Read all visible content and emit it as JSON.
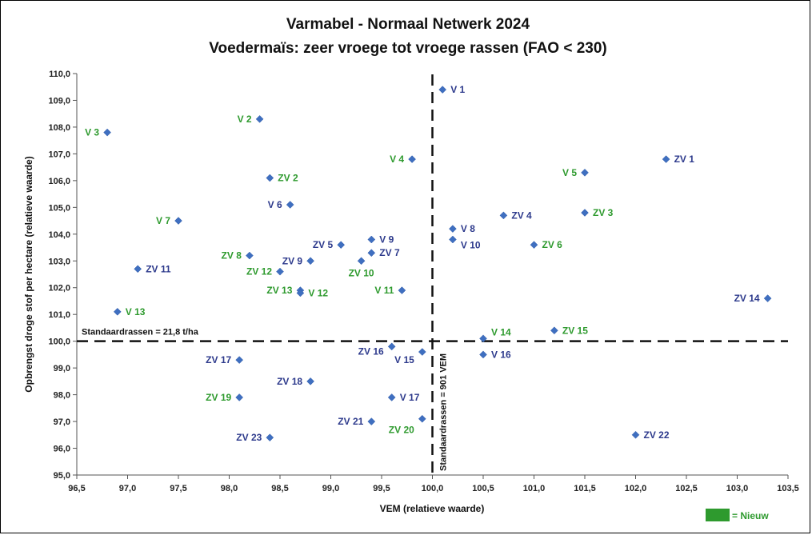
{
  "chart_data": {
    "type": "scatter",
    "title": "Varmabel - Normaal Netwerk 2024",
    "subtitle": "Voedermaïs: zeer vroege tot vroege rassen (FAO < 230)",
    "xlabel": "VEM (relatieve waarde)",
    "ylabel": "Opbrengst droge stof per hectare (relatieve waarde)",
    "xlim": [
      96.5,
      103.5
    ],
    "ylim": [
      95.0,
      110.0
    ],
    "x_ticks": [
      "96,5",
      "97,0",
      "97,5",
      "98,0",
      "98,5",
      "99,0",
      "99,5",
      "100,0",
      "100,5",
      "101,0",
      "101,5",
      "102,0",
      "102,5",
      "103,0",
      "103,5"
    ],
    "y_ticks": [
      "95,0",
      "96,0",
      "97,0",
      "98,0",
      "99,0",
      "100,0",
      "101,0",
      "102,0",
      "103,0",
      "104,0",
      "105,0",
      "106,0",
      "107,0",
      "108,0",
      "109,0",
      "110,0"
    ],
    "grid": false,
    "reference_lines": {
      "horizontal": {
        "y": 100.0,
        "label": "Standaardrassen = 21,8 t/ha"
      },
      "vertical": {
        "x": 100.0,
        "label": "Standaardrassen = 901 VEM"
      }
    },
    "legend": {
      "placement": "bottom-right",
      "label": "= Nieuw",
      "color": "#2e9a2e"
    },
    "marker_color": "#3f6fc0",
    "colors": {
      "existing": "#2d3a8c",
      "new": "#2e9a2e"
    },
    "points": [
      {
        "label": "V 1",
        "x": 100.1,
        "y": 109.4,
        "new": false,
        "side": "right"
      },
      {
        "label": "V 2",
        "x": 98.3,
        "y": 108.3,
        "new": true,
        "side": "left"
      },
      {
        "label": "V 3",
        "x": 96.8,
        "y": 107.8,
        "new": true,
        "side": "left"
      },
      {
        "label": "V 4",
        "x": 99.8,
        "y": 106.8,
        "new": true,
        "side": "left"
      },
      {
        "label": "ZV 1",
        "x": 102.3,
        "y": 106.8,
        "new": false,
        "side": "right"
      },
      {
        "label": "V 5",
        "x": 101.5,
        "y": 106.3,
        "new": true,
        "side": "left"
      },
      {
        "label": "ZV 2",
        "x": 98.4,
        "y": 106.1,
        "new": true,
        "side": "right"
      },
      {
        "label": "V 6",
        "x": 98.6,
        "y": 105.1,
        "new": false,
        "side": "left"
      },
      {
        "label": "ZV 3",
        "x": 101.5,
        "y": 104.8,
        "new": true,
        "side": "right"
      },
      {
        "label": "ZV 4",
        "x": 100.7,
        "y": 104.7,
        "new": false,
        "side": "right"
      },
      {
        "label": "V 7",
        "x": 97.5,
        "y": 104.5,
        "new": true,
        "side": "left"
      },
      {
        "label": "V 8",
        "x": 100.2,
        "y": 104.2,
        "new": false,
        "side": "right"
      },
      {
        "label": "V 9",
        "x": 99.4,
        "y": 103.8,
        "new": false,
        "side": "right"
      },
      {
        "label": "V 10",
        "x": 100.2,
        "y": 103.8,
        "new": false,
        "side": "right",
        "dy": 7
      },
      {
        "label": "ZV 5",
        "x": 99.1,
        "y": 103.6,
        "new": false,
        "side": "left"
      },
      {
        "label": "ZV 6",
        "x": 101.0,
        "y": 103.6,
        "new": true,
        "side": "right"
      },
      {
        "label": "ZV 7",
        "x": 99.4,
        "y": 103.3,
        "new": false,
        "side": "right"
      },
      {
        "label": "ZV 8",
        "x": 98.2,
        "y": 103.2,
        "new": true,
        "side": "left"
      },
      {
        "label": "ZV 9",
        "x": 98.8,
        "y": 103.0,
        "new": false,
        "side": "left"
      },
      {
        "label": "ZV 10",
        "x": 99.3,
        "y": 103.0,
        "new": true,
        "side": "below"
      },
      {
        "label": "ZV 11",
        "x": 97.1,
        "y": 102.7,
        "new": false,
        "side": "right"
      },
      {
        "label": "ZV 12",
        "x": 98.5,
        "y": 102.6,
        "new": true,
        "side": "left"
      },
      {
        "label": "V 11",
        "x": 99.7,
        "y": 101.9,
        "new": true,
        "side": "left"
      },
      {
        "label": "ZV 13",
        "x": 98.7,
        "y": 101.9,
        "new": true,
        "side": "left"
      },
      {
        "label": "V 12",
        "x": 98.7,
        "y": 101.8,
        "new": true,
        "side": "right"
      },
      {
        "label": "ZV 14",
        "x": 103.3,
        "y": 101.6,
        "new": false,
        "side": "left"
      },
      {
        "label": "V 13",
        "x": 96.9,
        "y": 101.1,
        "new": true,
        "side": "right"
      },
      {
        "label": "ZV 15",
        "x": 101.2,
        "y": 100.4,
        "new": true,
        "side": "right"
      },
      {
        "label": "V 14",
        "x": 100.5,
        "y": 100.1,
        "new": true,
        "side": "right",
        "dy": -8
      },
      {
        "label": "ZV 16",
        "x": 99.6,
        "y": 99.8,
        "new": false,
        "side": "left",
        "dy": 6
      },
      {
        "label": "V 15",
        "x": 99.9,
        "y": 99.6,
        "new": false,
        "side": "left",
        "dy": 10
      },
      {
        "label": "V 16",
        "x": 100.5,
        "y": 99.5,
        "new": false,
        "side": "right"
      },
      {
        "label": "ZV 17",
        "x": 98.1,
        "y": 99.3,
        "new": false,
        "side": "left"
      },
      {
        "label": "ZV 18",
        "x": 98.8,
        "y": 98.5,
        "new": false,
        "side": "left"
      },
      {
        "label": "ZV 19",
        "x": 98.1,
        "y": 97.9,
        "new": true,
        "side": "left"
      },
      {
        "label": "V 17",
        "x": 99.6,
        "y": 97.9,
        "new": false,
        "side": "right"
      },
      {
        "label": "ZV 20",
        "x": 99.9,
        "y": 97.1,
        "new": true,
        "side": "left",
        "dy": 14
      },
      {
        "label": "ZV 21",
        "x": 99.4,
        "y": 97.0,
        "new": false,
        "side": "left"
      },
      {
        "label": "ZV 22",
        "x": 102.0,
        "y": 96.5,
        "new": false,
        "side": "right"
      },
      {
        "label": "ZV 23",
        "x": 98.4,
        "y": 96.4,
        "new": false,
        "side": "left"
      }
    ]
  }
}
